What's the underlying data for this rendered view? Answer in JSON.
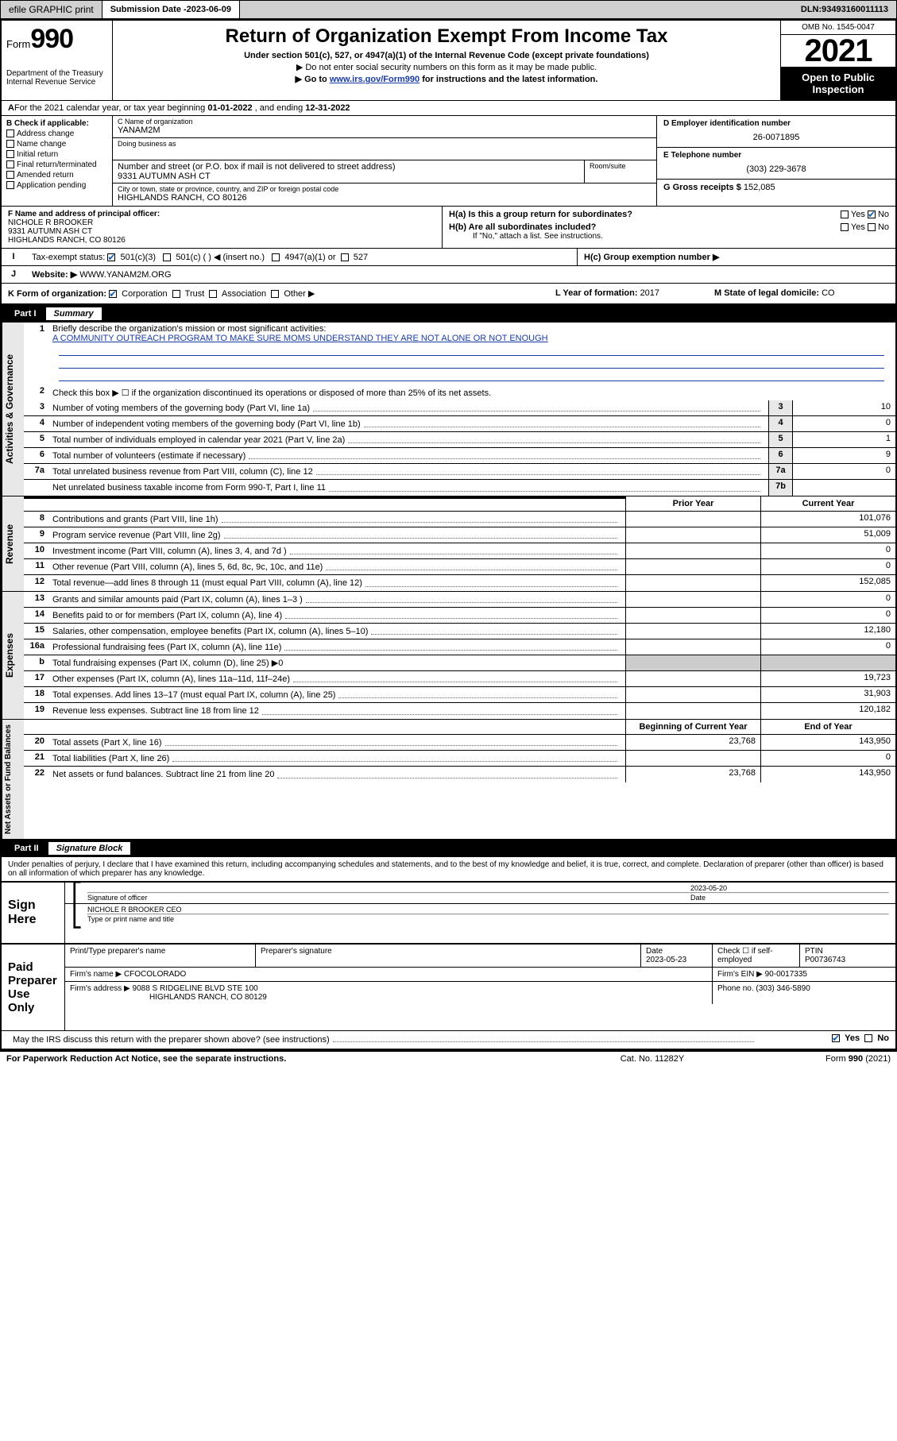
{
  "topbar": {
    "efile": "efile GRAPHIC print",
    "submission_label": "Submission Date - ",
    "submission_date": "2023-06-09",
    "dln_label": "DLN: ",
    "dln": "93493160011113"
  },
  "header": {
    "form_prefix": "Form",
    "form_number": "990",
    "dept": "Department of the Treasury",
    "irs": "Internal Revenue Service",
    "title": "Return of Organization Exempt From Income Tax",
    "sub1": "Under section 501(c), 527, or 4947(a)(1) of the Internal Revenue Code (except private foundations)",
    "sub2": "▶ Do not enter social security numbers on this form as it may be made public.",
    "sub3_pre": "▶ Go to ",
    "sub3_link": "www.irs.gov/Form990",
    "sub3_post": " for instructions and the latest information.",
    "omb": "OMB No. 1545-0047",
    "year": "2021",
    "open_public": "Open to Public Inspection"
  },
  "lineA": {
    "pre": "For the 2021 calendar year, or tax year beginning ",
    "begin": "01-01-2022",
    "mid": " , and ending ",
    "end": "12-31-2022"
  },
  "colB": {
    "hd": "B Check if applicable:",
    "items": [
      "Address change",
      "Name change",
      "Initial return",
      "Final return/terminated",
      "Amended return",
      "Application pending"
    ]
  },
  "colC": {
    "name_lbl": "C Name of organization",
    "name": "YANAM2M",
    "dba_lbl": "Doing business as",
    "dba": "",
    "street_lbl": "Number and street (or P.O. box if mail is not delivered to street address)",
    "street": "9331 AUTUMN ASH CT",
    "room_lbl": "Room/suite",
    "city_lbl": "City or town, state or province, country, and ZIP or foreign postal code",
    "city": "HIGHLANDS RANCH, CO  80126"
  },
  "colDE": {
    "d_lbl": "D Employer identification number",
    "d_val": "26-0071895",
    "e_lbl": "E Telephone number",
    "e_val": "(303) 229-3678",
    "g_lbl": "G Gross receipts $ ",
    "g_val": "152,085"
  },
  "rowF": {
    "lbl": "F Name and address of principal officer:",
    "l1": "NICHOLE R BROOKER",
    "l2": "9331 AUTUMN ASH CT",
    "l3": "HIGHLANDS RANCH, CO  80126"
  },
  "rowH": {
    "ha": "H(a)  Is this a group return for subordinates?",
    "hb": "H(b)  Are all subordinates included?",
    "hb_note": "If \"No,\" attach a list. See instructions.",
    "hc": "H(c)  Group exemption number ▶",
    "yes": "Yes",
    "no": "No"
  },
  "rowI": {
    "lbl": "Tax-exempt status:",
    "a": "501(c)(3)",
    "b": "501(c) (  ) ◀ (insert no.)",
    "c": "4947(a)(1) or",
    "d": "527"
  },
  "rowJ": {
    "lbl": "Website: ▶ ",
    "val": "WWW.YANAM2M.ORG"
  },
  "rowK": {
    "form_lbl": "K Form of organization:",
    "opts": [
      "Corporation",
      "Trust",
      "Association",
      "Other ▶"
    ],
    "l_lbl": "L Year of formation: ",
    "l_val": "2017",
    "m_lbl": "M State of legal domicile: ",
    "m_val": "CO"
  },
  "part1": {
    "num": "Part I",
    "title": "Summary",
    "q1_lbl": "Briefly describe the organization's mission or most significant activities:",
    "q1_val": "A COMMUNITY OUTREACH PROGRAM TO MAKE SURE MOMS UNDERSTAND THEY ARE NOT ALONE OR NOT ENOUGH",
    "q2": "Check this box ▶ ☐ if the organization discontinued its operations or disposed of more than 25% of its net assets.",
    "rows_gov": [
      {
        "n": "3",
        "t": "Number of voting members of the governing body (Part VI, line 1a)",
        "b": "3",
        "v": "10"
      },
      {
        "n": "4",
        "t": "Number of independent voting members of the governing body (Part VI, line 1b)",
        "b": "4",
        "v": "0"
      },
      {
        "n": "5",
        "t": "Total number of individuals employed in calendar year 2021 (Part V, line 2a)",
        "b": "5",
        "v": "1"
      },
      {
        "n": "6",
        "t": "Total number of volunteers (estimate if necessary)",
        "b": "6",
        "v": "9"
      },
      {
        "n": "7a",
        "t": "Total unrelated business revenue from Part VIII, column (C), line 12",
        "b": "7a",
        "v": "0"
      },
      {
        "n": "",
        "t": "Net unrelated business taxable income from Form 990-T, Part I, line 11",
        "b": "7b",
        "v": ""
      }
    ],
    "prior_hd": "Prior Year",
    "curr_hd": "Current Year",
    "rows_rev": [
      {
        "n": "8",
        "t": "Contributions and grants (Part VIII, line 1h)",
        "p": "",
        "c": "101,076"
      },
      {
        "n": "9",
        "t": "Program service revenue (Part VIII, line 2g)",
        "p": "",
        "c": "51,009"
      },
      {
        "n": "10",
        "t": "Investment income (Part VIII, column (A), lines 3, 4, and 7d )",
        "p": "",
        "c": "0"
      },
      {
        "n": "11",
        "t": "Other revenue (Part VIII, column (A), lines 5, 6d, 8c, 9c, 10c, and 11e)",
        "p": "",
        "c": "0"
      },
      {
        "n": "12",
        "t": "Total revenue—add lines 8 through 11 (must equal Part VIII, column (A), line 12)",
        "p": "",
        "c": "152,085"
      }
    ],
    "rows_exp": [
      {
        "n": "13",
        "t": "Grants and similar amounts paid (Part IX, column (A), lines 1–3 )",
        "p": "",
        "c": "0"
      },
      {
        "n": "14",
        "t": "Benefits paid to or for members (Part IX, column (A), line 4)",
        "p": "",
        "c": "0"
      },
      {
        "n": "15",
        "t": "Salaries, other compensation, employee benefits (Part IX, column (A), lines 5–10)",
        "p": "",
        "c": "12,180"
      },
      {
        "n": "16a",
        "t": "Professional fundraising fees (Part IX, column (A), line 11e)",
        "p": "",
        "c": "0"
      },
      {
        "n": "b",
        "t": "Total fundraising expenses (Part IX, column (D), line 25) ▶0",
        "p": "grey",
        "c": "grey"
      },
      {
        "n": "17",
        "t": "Other expenses (Part IX, column (A), lines 11a–11d, 11f–24e)",
        "p": "",
        "c": "19,723"
      },
      {
        "n": "18",
        "t": "Total expenses. Add lines 13–17 (must equal Part IX, column (A), line 25)",
        "p": "",
        "c": "31,903"
      },
      {
        "n": "19",
        "t": "Revenue less expenses. Subtract line 18 from line 12",
        "p": "",
        "c": "120,182"
      }
    ],
    "beg_hd": "Beginning of Current Year",
    "end_hd": "End of Year",
    "rows_net": [
      {
        "n": "20",
        "t": "Total assets (Part X, line 16)",
        "p": "23,768",
        "c": "143,950"
      },
      {
        "n": "21",
        "t": "Total liabilities (Part X, line 26)",
        "p": "",
        "c": "0"
      },
      {
        "n": "22",
        "t": "Net assets or fund balances. Subtract line 21 from line 20",
        "p": "23,768",
        "c": "143,950"
      }
    ]
  },
  "part2": {
    "num": "Part II",
    "title": "Signature Block",
    "decl": "Under penalties of perjury, I declare that I have examined this return, including accompanying schedules and statements, and to the best of my knowledge and belief, it is true, correct, and complete. Declaration of preparer (other than officer) is based on all information of which preparer has any knowledge."
  },
  "sign": {
    "here": "Sign Here",
    "sig_lbl": "Signature of officer",
    "date_lbl": "Date",
    "date": "2023-05-20",
    "name": "NICHOLE R BROOKER CEO",
    "name_lbl": "Type or print name and title"
  },
  "prep": {
    "hdr": "Paid Preparer Use Only",
    "c1": "Print/Type preparer's name",
    "c2": "Preparer's signature",
    "c3": "Date",
    "c3v": "2023-05-23",
    "c4": "Check ☐ if self-employed",
    "c5": "PTIN",
    "c5v": "P00736743",
    "firm_lbl": "Firm's name   ▶ ",
    "firm": "CFOCOLORADO",
    "ein_lbl": "Firm's EIN ▶ ",
    "ein": "90-0017335",
    "addr_lbl": "Firm's address ▶ ",
    "addr1": "9088 S RIDGELINE BLVD STE 100",
    "addr2": "HIGHLANDS RANCH, CO  80129",
    "phone_lbl": "Phone no. ",
    "phone": "(303) 346-5890"
  },
  "may": "May the IRS discuss this return with the preparer shown above? (see instructions)",
  "footer": {
    "l": "For Paperwork Reduction Act Notice, see the separate instructions.",
    "m": "Cat. No. 11282Y",
    "r": "Form 990 (2021)"
  }
}
